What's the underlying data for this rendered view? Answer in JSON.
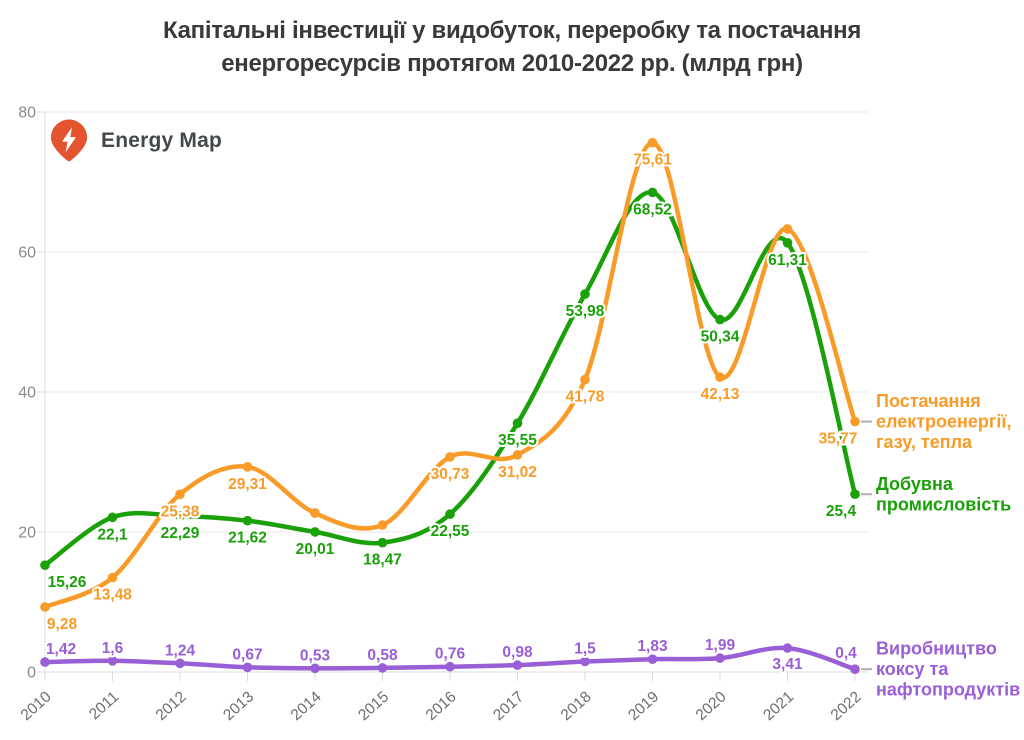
{
  "title": {
    "line1": "Капітальні інвестиції у видобуток, переробку та постачання",
    "line2": "енергоресурсів протягом 2010-2022 рр. (млрд грн)"
  },
  "logo": {
    "label": "Energy Map",
    "pin_color": "#e4552f"
  },
  "colors": {
    "supply_orange": "#f89b28",
    "mining_green": "#1aa10a",
    "coke_purple": "#9a5ed6",
    "title_text": "#3a3a3a",
    "axis_text": "#8a8a8a",
    "year_text": "#6e6e6e",
    "gridline": "#e9e9e9",
    "axis_line": "#dcdcdc",
    "connector_dash": "#b0b0b0"
  },
  "chart_data": {
    "type": "line",
    "x": [
      "2010",
      "2011",
      "2012",
      "2013",
      "2014",
      "2015",
      "2016",
      "2017",
      "2018",
      "2019",
      "2020",
      "2021",
      "2022"
    ],
    "ylim": [
      0,
      80
    ],
    "yticks": [
      0,
      20,
      40,
      60,
      80
    ],
    "grid": "horizontal only",
    "legend_position": "right, next to last data points",
    "series": [
      {
        "id": "supply-electricity-gas-heat",
        "name": "Постачання електроенергії, газу, тепла",
        "color": "#f89b28",
        "values": [
          9.28,
          13.48,
          25.38,
          29.31,
          22.7,
          21.0,
          30.73,
          31.02,
          41.78,
          75.61,
          42.13,
          63.3,
          35.77
        ],
        "point_labels": [
          "9,28",
          "13,48",
          "25,38",
          "29,31",
          null,
          null,
          "30,73",
          "31,02",
          "41,78",
          "75,61",
          "42,13",
          null,
          "35,77"
        ],
        "legend_lines": [
          "Постачання",
          "електроенергії,",
          "газу, тепла"
        ],
        "note": "2014, 2015 and 2021 points have no visible data labels; values estimated from the curve"
      },
      {
        "id": "mining-industry",
        "name": "Добувна промисловість",
        "color": "#1aa10a",
        "values": [
          15.26,
          22.1,
          22.29,
          21.62,
          20.01,
          18.47,
          22.55,
          35.55,
          53.98,
          68.52,
          50.34,
          61.31,
          25.4
        ],
        "point_labels": [
          "15,26",
          "22,1",
          "22,29",
          "21,62",
          "20,01",
          "18,47",
          "22,55",
          "35,55",
          "53,98",
          "68,52",
          "50,34",
          "61,31",
          "25,4"
        ],
        "legend_lines": [
          "Добувна",
          "промисловість"
        ]
      },
      {
        "id": "coke-petroleum-products",
        "name": "Виробництво коксу та нафтопродуктів",
        "color": "#9a5ed6",
        "values": [
          1.42,
          1.6,
          1.24,
          0.67,
          0.53,
          0.58,
          0.76,
          0.98,
          1.5,
          1.83,
          1.99,
          3.41,
          0.4
        ],
        "point_labels": [
          "1,42",
          "1,6",
          "1,24",
          "0,67",
          "0,53",
          "0,58",
          "0,76",
          "0,98",
          "1,5",
          "1,83",
          "1,99",
          "3,41",
          "0,4"
        ],
        "legend_lines": [
          "Виробництво",
          "коксу та",
          "нафтопродуктів"
        ]
      }
    ]
  }
}
